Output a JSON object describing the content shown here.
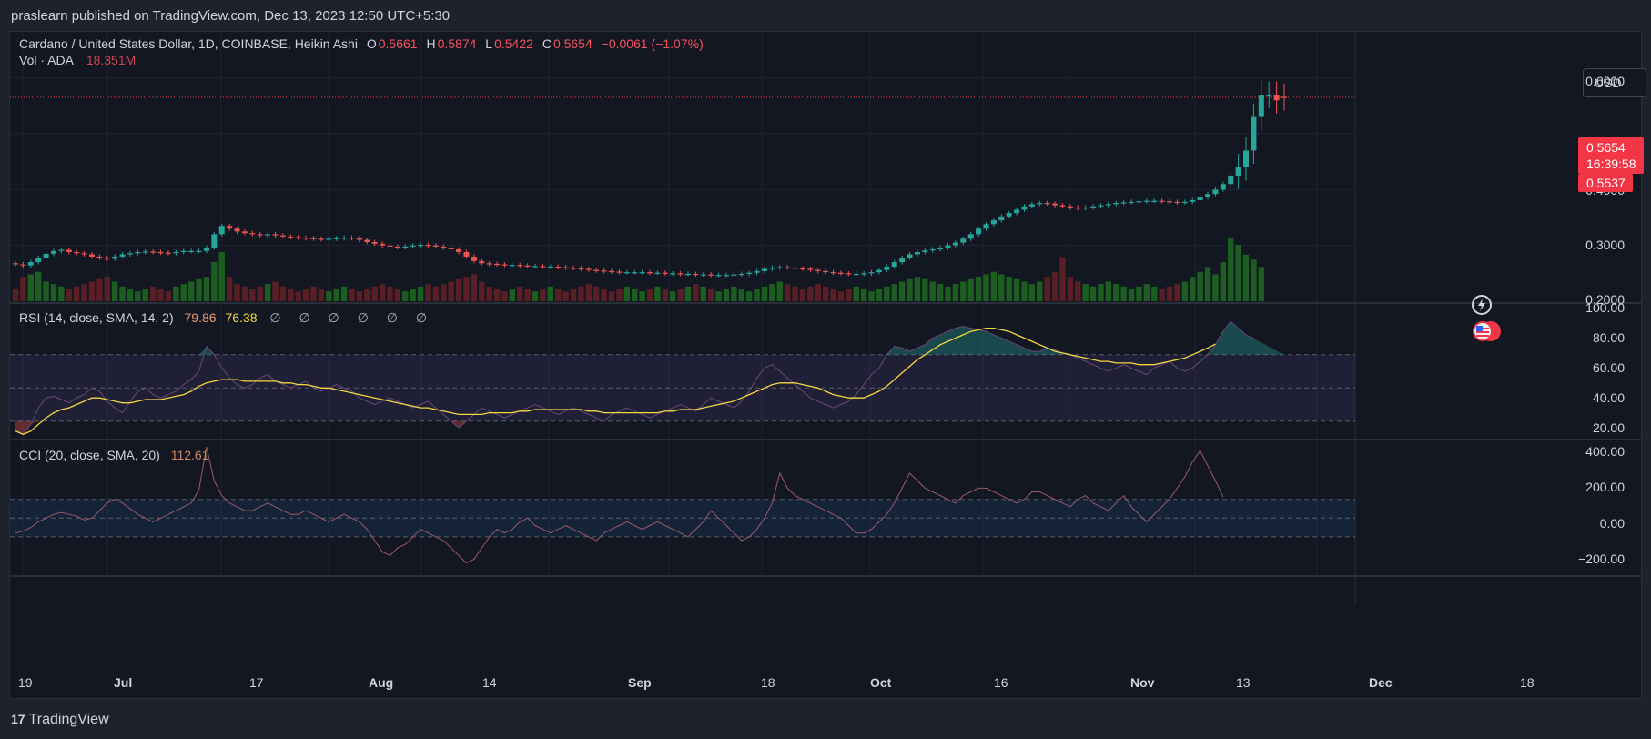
{
  "header": {
    "published_by": "praslearn published on TradingView.com, Dec 13, 2023 12:50 UTC+5:30"
  },
  "symbol_legend": {
    "title": "Cardano / United States Dollar, 1D, COINBASE, Heikin Ashi",
    "o_label": "O",
    "o_value": "0.5661",
    "h_label": "H",
    "h_value": "0.5874",
    "l_label": "L",
    "l_value": "0.5422",
    "c_label": "C",
    "c_value": "0.5654",
    "change": "−0.0061 (−1.07%)"
  },
  "volume_legend": {
    "label": "Vol · ADA",
    "value": "18.351M"
  },
  "rsi_legend": {
    "label": "RSI (14, close, SMA, 14, 2)",
    "value": "79.86",
    "sma_value": "76.38",
    "hidden_marks": "∅ ∅ ∅ ∅ ∅ ∅"
  },
  "cci_legend": {
    "label": "CCI (20, close, SMA, 20)",
    "value": "112.61"
  },
  "currency": "USD",
  "price_label": {
    "price": "0.5654",
    "countdown": "16:39:58",
    "low": "0.5537"
  },
  "price_axis": [
    "0.6000",
    "0.4000",
    "0.3000",
    "0.2000"
  ],
  "rsi_axis": [
    "100.00",
    "80.00",
    "60.00",
    "40.00",
    "20.00"
  ],
  "cci_axis": [
    "400.00",
    "200.00",
    "0.00",
    "−200.00"
  ],
  "time_axis": [
    {
      "label": "19",
      "bold": false
    },
    {
      "label": "Jul",
      "bold": true
    },
    {
      "label": "17",
      "bold": false
    },
    {
      "label": "Aug",
      "bold": true
    },
    {
      "label": "14",
      "bold": false
    },
    {
      "label": "Sep",
      "bold": true
    },
    {
      "label": "18",
      "bold": false
    },
    {
      "label": "Oct",
      "bold": true
    },
    {
      "label": "16",
      "bold": false
    },
    {
      "label": "Nov",
      "bold": true
    },
    {
      "label": "13",
      "bold": false
    },
    {
      "label": "Dec",
      "bold": true
    },
    {
      "label": "18",
      "bold": false
    }
  ],
  "footer": {
    "brand": "TradingView",
    "logo_mark": "17"
  },
  "colors": {
    "up": "#26a69a",
    "down": "#ef5350",
    "vol_up": "#1b5e20",
    "vol_down": "#5a1f24",
    "rsi_line": "#7e57c2",
    "rsi_sma": "#f5d742",
    "cci_line": "#9c5a6a",
    "band": "#7e57c2",
    "cci_band": "#2196f3"
  },
  "chart_data": {
    "type": "candlestick",
    "title": "Cardano / United States Dollar, 1D, COINBASE, Heikin Ashi",
    "x_start": "2023-06-17",
    "close": [
      0.266,
      0.264,
      0.27,
      0.278,
      0.285,
      0.29,
      0.292,
      0.288,
      0.286,
      0.284,
      0.28,
      0.278,
      0.276,
      0.28,
      0.284,
      0.286,
      0.288,
      0.289,
      0.288,
      0.287,
      0.286,
      0.288,
      0.29,
      0.29,
      0.29,
      0.296,
      0.32,
      0.335,
      0.33,
      0.325,
      0.322,
      0.32,
      0.318,
      0.32,
      0.318,
      0.316,
      0.315,
      0.314,
      0.313,
      0.312,
      0.311,
      0.312,
      0.313,
      0.314,
      0.313,
      0.31,
      0.306,
      0.303,
      0.3,
      0.298,
      0.297,
      0.298,
      0.3,
      0.301,
      0.3,
      0.298,
      0.296,
      0.293,
      0.288,
      0.28,
      0.272,
      0.268,
      0.267,
      0.266,
      0.265,
      0.265,
      0.264,
      0.263,
      0.263,
      0.262,
      0.262,
      0.261,
      0.26,
      0.259,
      0.258,
      0.256,
      0.255,
      0.254,
      0.253,
      0.252,
      0.252,
      0.252,
      0.252,
      0.251,
      0.251,
      0.25,
      0.25,
      0.249,
      0.249,
      0.248,
      0.248,
      0.247,
      0.247,
      0.247,
      0.248,
      0.249,
      0.251,
      0.254,
      0.258,
      0.26,
      0.261,
      0.26,
      0.259,
      0.258,
      0.256,
      0.254,
      0.252,
      0.251,
      0.25,
      0.249,
      0.249,
      0.25,
      0.252,
      0.256,
      0.262,
      0.27,
      0.278,
      0.284,
      0.288,
      0.291,
      0.293,
      0.296,
      0.3,
      0.305,
      0.312,
      0.32,
      0.33,
      0.338,
      0.345,
      0.352,
      0.358,
      0.364,
      0.37,
      0.374,
      0.376,
      0.375,
      0.372,
      0.37,
      0.368,
      0.367,
      0.368,
      0.37,
      0.372,
      0.374,
      0.376,
      0.377,
      0.378,
      0.379,
      0.38,
      0.38,
      0.379,
      0.378,
      0.377,
      0.378,
      0.381,
      0.386,
      0.392,
      0.4,
      0.41,
      0.425,
      0.44,
      0.47,
      0.53,
      0.57,
      0.57,
      0.56,
      0.5654
    ],
    "open": [
      0.268,
      0.266,
      0.264,
      0.27,
      0.278,
      0.285,
      0.29,
      0.292,
      0.288,
      0.286,
      0.284,
      0.28,
      0.278,
      0.276,
      0.28,
      0.284,
      0.286,
      0.288,
      0.289,
      0.288,
      0.287,
      0.286,
      0.288,
      0.29,
      0.29,
      0.29,
      0.296,
      0.32,
      0.335,
      0.33,
      0.325,
      0.322,
      0.32,
      0.318,
      0.32,
      0.318,
      0.316,
      0.315,
      0.314,
      0.313,
      0.312,
      0.311,
      0.312,
      0.313,
      0.314,
      0.313,
      0.31,
      0.306,
      0.303,
      0.3,
      0.298,
      0.297,
      0.298,
      0.3,
      0.301,
      0.3,
      0.298,
      0.296,
      0.293,
      0.288,
      0.28,
      0.272,
      0.268,
      0.267,
      0.266,
      0.265,
      0.265,
      0.264,
      0.263,
      0.263,
      0.262,
      0.262,
      0.261,
      0.26,
      0.259,
      0.258,
      0.256,
      0.255,
      0.254,
      0.253,
      0.252,
      0.252,
      0.252,
      0.252,
      0.251,
      0.251,
      0.25,
      0.25,
      0.249,
      0.249,
      0.248,
      0.248,
      0.247,
      0.247,
      0.247,
      0.248,
      0.249,
      0.251,
      0.254,
      0.258,
      0.26,
      0.261,
      0.26,
      0.259,
      0.258,
      0.256,
      0.254,
      0.252,
      0.251,
      0.25,
      0.249,
      0.249,
      0.25,
      0.252,
      0.256,
      0.262,
      0.27,
      0.278,
      0.284,
      0.288,
      0.291,
      0.293,
      0.296,
      0.3,
      0.305,
      0.312,
      0.32,
      0.33,
      0.338,
      0.345,
      0.352,
      0.358,
      0.364,
      0.37,
      0.374,
      0.376,
      0.375,
      0.372,
      0.37,
      0.368,
      0.367,
      0.368,
      0.37,
      0.372,
      0.374,
      0.376,
      0.377,
      0.378,
      0.379,
      0.38,
      0.38,
      0.379,
      0.378,
      0.377,
      0.378,
      0.381,
      0.386,
      0.392,
      0.4,
      0.41,
      0.425,
      0.44,
      0.47,
      0.53,
      0.57,
      0.57,
      0.5661
    ],
    "volume_rel": [
      0.25,
      0.5,
      0.55,
      0.6,
      0.4,
      0.35,
      0.3,
      0.25,
      0.3,
      0.35,
      0.4,
      0.45,
      0.5,
      0.4,
      0.3,
      0.25,
      0.2,
      0.25,
      0.3,
      0.25,
      0.2,
      0.3,
      0.35,
      0.4,
      0.45,
      0.5,
      0.8,
      1.0,
      0.5,
      0.35,
      0.3,
      0.25,
      0.3,
      0.35,
      0.4,
      0.3,
      0.25,
      0.2,
      0.25,
      0.3,
      0.25,
      0.2,
      0.25,
      0.3,
      0.25,
      0.2,
      0.25,
      0.3,
      0.35,
      0.3,
      0.25,
      0.2,
      0.25,
      0.3,
      0.35,
      0.3,
      0.35,
      0.4,
      0.45,
      0.5,
      0.55,
      0.4,
      0.3,
      0.25,
      0.2,
      0.25,
      0.3,
      0.25,
      0.2,
      0.25,
      0.3,
      0.25,
      0.2,
      0.25,
      0.3,
      0.35,
      0.3,
      0.25,
      0.2,
      0.25,
      0.3,
      0.25,
      0.2,
      0.25,
      0.3,
      0.25,
      0.2,
      0.25,
      0.3,
      0.35,
      0.3,
      0.25,
      0.2,
      0.25,
      0.3,
      0.25,
      0.2,
      0.25,
      0.3,
      0.35,
      0.4,
      0.35,
      0.3,
      0.25,
      0.3,
      0.35,
      0.3,
      0.25,
      0.2,
      0.25,
      0.3,
      0.25,
      0.2,
      0.25,
      0.3,
      0.35,
      0.4,
      0.45,
      0.5,
      0.45,
      0.4,
      0.35,
      0.3,
      0.35,
      0.4,
      0.45,
      0.5,
      0.55,
      0.6,
      0.55,
      0.5,
      0.45,
      0.4,
      0.35,
      0.4,
      0.5,
      0.6,
      0.9,
      0.5,
      0.4,
      0.35,
      0.3,
      0.35,
      0.4,
      0.35,
      0.3,
      0.25,
      0.3,
      0.35,
      0.3,
      0.25,
      0.3,
      0.35,
      0.4,
      0.5,
      0.6,
      0.7,
      0.55,
      0.8,
      1.3,
      1.15,
      0.95,
      0.85,
      0.7
    ],
    "rsi": [
      25,
      22,
      28,
      38,
      44,
      45,
      43,
      41,
      44,
      46,
      50,
      48,
      42,
      38,
      35,
      42,
      48,
      50,
      46,
      44,
      46,
      48,
      52,
      55,
      60,
      75,
      70,
      62,
      56,
      52,
      50,
      52,
      56,
      58,
      54,
      52,
      50,
      52,
      54,
      50,
      48,
      50,
      52,
      50,
      48,
      44,
      42,
      40,
      42,
      44,
      42,
      40,
      38,
      40,
      42,
      38,
      34,
      30,
      26,
      30,
      34,
      38,
      36,
      34,
      32,
      34,
      36,
      38,
      40,
      38,
      36,
      34,
      36,
      38,
      36,
      34,
      32,
      30,
      34,
      36,
      38,
      36,
      34,
      32,
      34,
      36,
      38,
      40,
      38,
      36,
      40,
      44,
      42,
      40,
      38,
      42,
      48,
      56,
      62,
      64,
      60,
      56,
      52,
      48,
      44,
      42,
      40,
      38,
      40,
      42,
      46,
      52,
      58,
      62,
      70,
      75,
      74,
      72,
      74,
      76,
      80,
      82,
      84,
      86,
      87,
      86,
      85,
      84,
      82,
      80,
      78,
      76,
      74,
      72,
      72,
      74,
      73,
      71,
      70,
      68,
      66,
      64,
      62,
      60,
      62,
      64,
      62,
      60,
      58,
      62,
      64,
      66,
      62,
      60,
      62,
      66,
      70,
      76,
      84,
      90,
      86,
      82,
      79.86
    ],
    "rsi_sma": [
      24,
      22,
      24,
      28,
      32,
      35,
      37,
      38,
      40,
      42,
      44,
      44,
      43,
      42,
      41,
      41,
      42,
      43,
      43,
      43,
      44,
      45,
      46,
      48,
      51,
      53,
      54,
      55,
      55,
      55,
      54,
      54,
      54,
      54,
      54,
      53,
      53,
      52,
      52,
      51,
      50,
      50,
      49,
      48,
      47,
      46,
      45,
      44,
      43,
      42,
      41,
      40,
      39,
      38,
      38,
      37,
      36,
      35,
      34,
      34,
      34,
      34,
      35,
      35,
      35,
      35,
      36,
      36,
      37,
      37,
      37,
      37,
      37,
      37,
      37,
      36,
      36,
      35,
      35,
      35,
      35,
      35,
      35,
      35,
      35,
      36,
      36,
      37,
      37,
      37,
      38,
      39,
      40,
      41,
      42,
      44,
      46,
      48,
      50,
      52,
      53,
      53,
      53,
      52,
      51,
      50,
      48,
      46,
      45,
      44,
      44,
      44,
      46,
      48,
      51,
      55,
      59,
      63,
      67,
      70,
      73,
      76,
      78,
      80,
      82,
      84,
      85,
      86,
      86,
      85,
      84,
      82,
      80,
      78,
      76,
      74,
      72,
      71,
      70,
      69,
      68,
      67,
      66,
      66,
      65,
      65,
      65,
      64,
      64,
      64,
      65,
      66,
      67,
      68,
      70,
      72,
      74,
      76.38
    ],
    "cci": [
      -80,
      -70,
      -50,
      -20,
      0,
      20,
      30,
      20,
      10,
      -10,
      0,
      40,
      80,
      100,
      80,
      50,
      20,
      0,
      -20,
      0,
      20,
      40,
      60,
      80,
      150,
      380,
      200,
      120,
      80,
      60,
      40,
      40,
      60,
      80,
      60,
      40,
      20,
      20,
      40,
      20,
      0,
      -20,
      0,
      20,
      0,
      -20,
      -60,
      -120,
      -180,
      -200,
      -160,
      -140,
      -100,
      -60,
      -80,
      -100,
      -120,
      -160,
      -200,
      -240,
      -220,
      -160,
      -100,
      -60,
      -80,
      -60,
      -20,
      0,
      -40,
      -60,
      -80,
      -60,
      -40,
      -60,
      -80,
      -100,
      -120,
      -80,
      -60,
      -40,
      -20,
      -40,
      -60,
      -40,
      -20,
      -40,
      -60,
      -80,
      -100,
      -60,
      -20,
      40,
      0,
      -40,
      -80,
      -120,
      -100,
      -60,
      0,
      80,
      240,
      160,
      120,
      100,
      80,
      60,
      40,
      20,
      0,
      -40,
      -80,
      -80,
      -60,
      -20,
      20,
      80,
      160,
      240,
      200,
      160,
      140,
      120,
      100,
      80,
      120,
      140,
      160,
      160,
      140,
      120,
      100,
      80,
      100,
      140,
      140,
      120,
      100,
      80,
      60,
      100,
      120,
      80,
      60,
      40,
      80,
      120,
      60,
      20,
      -20,
      20,
      60,
      100,
      160,
      220,
      300,
      360,
      280,
      200,
      112.61
    ],
    "ylim": [
      0.2,
      0.65
    ],
    "rsi_ylim": [
      20,
      100
    ],
    "cci_ylim": [
      -300,
      400
    ]
  }
}
